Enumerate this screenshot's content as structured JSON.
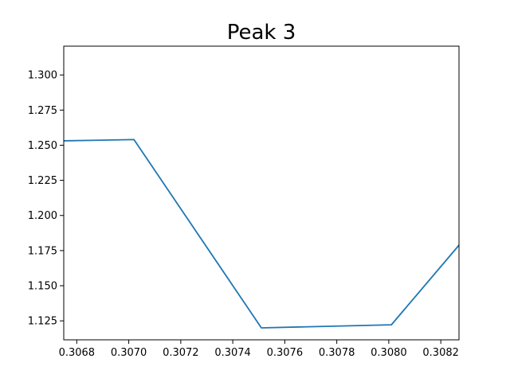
{
  "chart_data": {
    "type": "line",
    "title": "Peak 3",
    "xlabel": "",
    "ylabel": "",
    "xlim": [
      0.30675,
      0.30827
    ],
    "ylim": [
      1.1115,
      1.3205
    ],
    "grid": false,
    "legend": "none",
    "x_ticks": [
      {
        "value": 0.3068,
        "label": "0.3068"
      },
      {
        "value": 0.307,
        "label": "0.3070"
      },
      {
        "value": 0.3072,
        "label": "0.3072"
      },
      {
        "value": 0.3074,
        "label": "0.3074"
      },
      {
        "value": 0.3076,
        "label": "0.3076"
      },
      {
        "value": 0.3078,
        "label": "0.3078"
      },
      {
        "value": 0.308,
        "label": "0.3080"
      },
      {
        "value": 0.3082,
        "label": "0.3082"
      }
    ],
    "y_ticks": [
      {
        "value": 1.125,
        "label": "1.125"
      },
      {
        "value": 1.15,
        "label": "1.150"
      },
      {
        "value": 1.175,
        "label": "1.175"
      },
      {
        "value": 1.2,
        "label": "1.200"
      },
      {
        "value": 1.225,
        "label": "1.225"
      },
      {
        "value": 1.25,
        "label": "1.250"
      },
      {
        "value": 1.275,
        "label": "1.275"
      },
      {
        "value": 1.3,
        "label": "1.300"
      }
    ],
    "series": [
      {
        "color": "#1f77b4",
        "x": [
          0.30655,
          0.30702,
          0.30751,
          0.30801,
          0.3085
        ],
        "y": [
          1.2525,
          1.254,
          1.12,
          1.1222,
          1.229
        ]
      }
    ]
  }
}
